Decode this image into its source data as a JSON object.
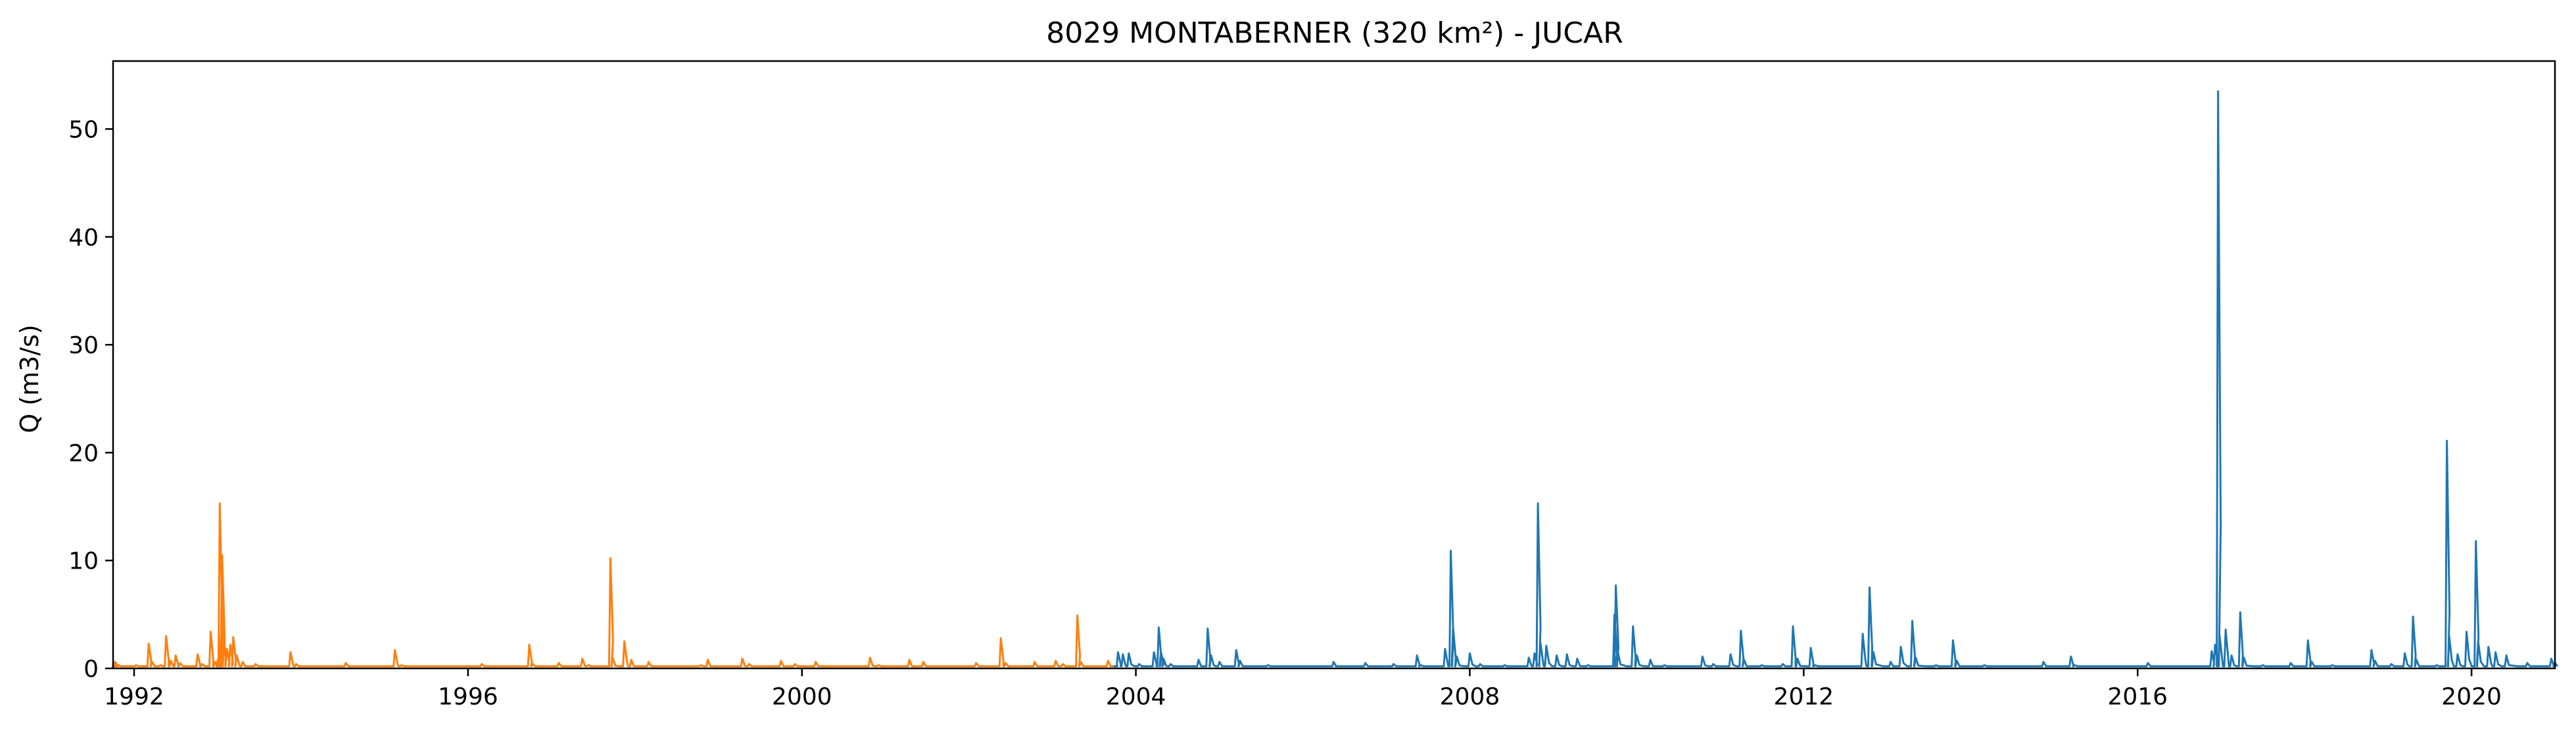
{
  "chart_data": {
    "type": "line",
    "title": "8029 MONTABERNER (320 km²) - JUCAR",
    "xlabel": "",
    "ylabel": "Q (m3/s)",
    "xlim": [
      "1991-10-01",
      "2020-12-31"
    ],
    "ylim": [
      0,
      56.3
    ],
    "x_ticks": [
      "1992",
      "1996",
      "2000",
      "2004",
      "2008",
      "2012",
      "2016",
      "2020"
    ],
    "y_ticks": [
      0,
      10,
      20,
      30,
      40,
      50
    ],
    "grid": false,
    "legend": "none",
    "baseflow": 0.2,
    "series": [
      {
        "color": "#ff7f0e",
        "values": [
          [
            "1991-10-01",
            0.2
          ],
          [
            "1991-10-10",
            0.6
          ],
          [
            "1991-10-25",
            0.3
          ],
          [
            "1991-12-01",
            0.2
          ],
          [
            "1992-01-10",
            0.3
          ],
          [
            "1992-02-15",
            0.2
          ],
          [
            "1992-03-05",
            2.3
          ],
          [
            "1992-03-20",
            0.6
          ],
          [
            "1992-04-25",
            0.3
          ],
          [
            "1992-05-20",
            3.0
          ],
          [
            "1992-06-10",
            0.7
          ],
          [
            "1992-07-01",
            1.2
          ],
          [
            "1992-07-20",
            0.5
          ],
          [
            "1992-09-01",
            0.2
          ],
          [
            "1992-10-05",
            1.3
          ],
          [
            "1992-10-25",
            0.4
          ],
          [
            "1992-12-01",
            3.4
          ],
          [
            "1992-12-20",
            0.6
          ],
          [
            "1993-01-01",
            0.8
          ],
          [
            "1993-01-10",
            15.3
          ],
          [
            "1993-01-15",
            3.0
          ],
          [
            "1993-01-20",
            10.5
          ],
          [
            "1993-01-25",
            3.5
          ],
          [
            "1993-02-10",
            1.8
          ],
          [
            "1993-02-25",
            2.2
          ],
          [
            "1993-03-10",
            2.9
          ],
          [
            "1993-03-25",
            1.2
          ],
          [
            "1993-04-20",
            0.6
          ],
          [
            "1993-06-15",
            0.4
          ],
          [
            "1993-08-01",
            0.2
          ],
          [
            "1993-11-15",
            1.5
          ],
          [
            "1993-12-10",
            0.4
          ],
          [
            "1994-03-01",
            0.2
          ],
          [
            "1994-07-15",
            0.5
          ],
          [
            "1994-10-01",
            0.2
          ],
          [
            "1995-02-15",
            1.7
          ],
          [
            "1995-03-15",
            0.3
          ],
          [
            "1995-09-01",
            0.2
          ],
          [
            "1996-03-01",
            0.4
          ],
          [
            "1996-07-01",
            0.2
          ],
          [
            "1996-09-25",
            2.2
          ],
          [
            "1996-10-10",
            0.4
          ],
          [
            "1997-02-01",
            0.5
          ],
          [
            "1997-05-15",
            0.9
          ],
          [
            "1997-06-10",
            0.3
          ],
          [
            "1997-09-15",
            10.2
          ],
          [
            "1997-09-25",
            1.0
          ],
          [
            "1997-11-15",
            2.5
          ],
          [
            "1997-12-15",
            0.8
          ],
          [
            "1998-03-01",
            0.6
          ],
          [
            "1998-06-01",
            0.2
          ],
          [
            "1998-10-15",
            0.3
          ],
          [
            "1998-11-15",
            0.8
          ],
          [
            "1999-01-01",
            0.2
          ],
          [
            "1999-04-15",
            0.9
          ],
          [
            "1999-05-15",
            0.4
          ],
          [
            "1999-10-01",
            0.7
          ],
          [
            "1999-12-01",
            0.4
          ],
          [
            "2000-03-01",
            0.6
          ],
          [
            "2000-06-01",
            0.2
          ],
          [
            "2000-10-25",
            1.0
          ],
          [
            "2000-12-01",
            0.3
          ],
          [
            "2001-04-15",
            0.8
          ],
          [
            "2001-06-15",
            0.6
          ],
          [
            "2001-10-01",
            0.2
          ],
          [
            "2002-02-01",
            0.5
          ],
          [
            "2002-05-20",
            2.8
          ],
          [
            "2002-06-10",
            0.5
          ],
          [
            "2002-10-15",
            0.6
          ],
          [
            "2003-01-15",
            0.7
          ],
          [
            "2003-02-15",
            0.4
          ],
          [
            "2003-04-20",
            4.9
          ],
          [
            "2003-05-05",
            0.6
          ],
          [
            "2003-08-01",
            0.2
          ],
          [
            "2003-09-01",
            0.7
          ],
          [
            "2003-09-20",
            0.2
          ]
        ]
      },
      {
        "color": "#1f77b4",
        "values": [
          [
            "2003-10-01",
            0.2
          ],
          [
            "2003-10-15",
            1.5
          ],
          [
            "2003-11-05",
            1.3
          ],
          [
            "2003-12-01",
            1.4
          ],
          [
            "2004-01-15",
            0.4
          ],
          [
            "2004-03-20",
            1.5
          ],
          [
            "2004-04-10",
            3.8
          ],
          [
            "2004-04-20",
            1.5
          ],
          [
            "2004-05-01",
            0.9
          ],
          [
            "2004-06-01",
            0.4
          ],
          [
            "2004-10-01",
            0.8
          ],
          [
            "2004-11-10",
            3.7
          ],
          [
            "2004-11-25",
            1.2
          ],
          [
            "2005-01-01",
            0.6
          ],
          [
            "2005-03-15",
            1.7
          ],
          [
            "2005-04-01",
            0.7
          ],
          [
            "2005-08-01",
            0.3
          ],
          [
            "2006-01-01",
            0.2
          ],
          [
            "2006-05-15",
            0.6
          ],
          [
            "2006-06-01",
            0.2
          ],
          [
            "2006-10-01",
            0.5
          ],
          [
            "2007-02-01",
            0.4
          ],
          [
            "2007-05-15",
            1.2
          ],
          [
            "2007-06-01",
            0.3
          ],
          [
            "2007-09-15",
            1.8
          ],
          [
            "2007-10-10",
            10.9
          ],
          [
            "2007-10-20",
            3.8
          ],
          [
            "2007-11-05",
            1.1
          ],
          [
            "2008-01-01",
            1.4
          ],
          [
            "2008-02-15",
            0.4
          ],
          [
            "2008-06-01",
            0.3
          ],
          [
            "2008-09-15",
            1.0
          ],
          [
            "2008-10-10",
            1.4
          ],
          [
            "2008-10-25",
            15.3
          ],
          [
            "2008-11-05",
            2.4
          ],
          [
            "2008-12-01",
            2.1
          ],
          [
            "2009-01-15",
            1.2
          ],
          [
            "2009-03-01",
            1.3
          ],
          [
            "2009-04-15",
            0.9
          ],
          [
            "2009-06-01",
            0.3
          ],
          [
            "2009-09-25",
            5.0
          ],
          [
            "2009-10-01",
            7.7
          ],
          [
            "2009-10-10",
            1.5
          ],
          [
            "2009-12-15",
            3.9
          ],
          [
            "2010-01-01",
            1.2
          ],
          [
            "2010-03-01",
            0.8
          ],
          [
            "2010-05-01",
            0.3
          ],
          [
            "2010-10-15",
            1.1
          ],
          [
            "2010-12-01",
            0.4
          ],
          [
            "2011-02-15",
            1.3
          ],
          [
            "2011-04-01",
            3.5
          ],
          [
            "2011-04-15",
            0.8
          ],
          [
            "2011-07-01",
            0.3
          ],
          [
            "2011-10-01",
            0.4
          ],
          [
            "2011-11-15",
            3.9
          ],
          [
            "2011-12-05",
            0.9
          ],
          [
            "2012-02-01",
            1.9
          ],
          [
            "2012-02-20",
            0.3
          ],
          [
            "2012-06-01",
            0.2
          ],
          [
            "2012-09-15",
            3.2
          ],
          [
            "2012-10-15",
            7.5
          ],
          [
            "2012-11-01",
            1.5
          ],
          [
            "2013-01-15",
            0.6
          ],
          [
            "2013-03-01",
            2.0
          ],
          [
            "2013-04-20",
            4.4
          ],
          [
            "2013-05-05",
            1.0
          ],
          [
            "2013-08-01",
            0.3
          ],
          [
            "2013-10-15",
            2.6
          ],
          [
            "2013-11-01",
            0.7
          ],
          [
            "2014-03-01",
            0.3
          ],
          [
            "2014-09-01",
            0.2
          ],
          [
            "2014-11-15",
            0.6
          ],
          [
            "2015-01-01",
            0.2
          ],
          [
            "2015-03-15",
            1.1
          ],
          [
            "2015-04-01",
            0.3
          ],
          [
            "2015-10-01",
            0.2
          ],
          [
            "2016-02-15",
            0.5
          ],
          [
            "2016-06-01",
            0.2
          ],
          [
            "2016-11-20",
            1.6
          ],
          [
            "2016-12-05",
            2.2
          ],
          [
            "2016-12-18",
            53.5
          ],
          [
            "2016-12-25",
            3.0
          ],
          [
            "2017-01-20",
            3.6
          ],
          [
            "2017-02-15",
            1.2
          ],
          [
            "2017-03-25",
            5.2
          ],
          [
            "2017-04-10",
            1.0
          ],
          [
            "2017-07-01",
            0.3
          ],
          [
            "2017-11-01",
            0.5
          ],
          [
            "2018-01-15",
            2.6
          ],
          [
            "2018-02-01",
            0.6
          ],
          [
            "2018-05-01",
            0.3
          ],
          [
            "2018-10-20",
            1.7
          ],
          [
            "2018-11-05",
            0.7
          ],
          [
            "2019-01-15",
            0.4
          ],
          [
            "2019-03-15",
            1.4
          ],
          [
            "2019-04-20",
            4.8
          ],
          [
            "2019-05-05",
            0.8
          ],
          [
            "2019-08-01",
            0.3
          ],
          [
            "2019-09-15",
            21.1
          ],
          [
            "2019-09-25",
            3.0
          ],
          [
            "2019-11-01",
            1.3
          ],
          [
            "2019-12-10",
            3.4
          ],
          [
            "2020-01-20",
            11.8
          ],
          [
            "2020-01-30",
            2.5
          ],
          [
            "2020-03-15",
            2.0
          ],
          [
            "2020-04-15",
            1.5
          ],
          [
            "2020-06-01",
            1.2
          ],
          [
            "2020-09-01",
            0.5
          ],
          [
            "2020-12-15",
            0.9
          ],
          [
            "2020-12-31",
            0.5
          ]
        ]
      }
    ]
  }
}
